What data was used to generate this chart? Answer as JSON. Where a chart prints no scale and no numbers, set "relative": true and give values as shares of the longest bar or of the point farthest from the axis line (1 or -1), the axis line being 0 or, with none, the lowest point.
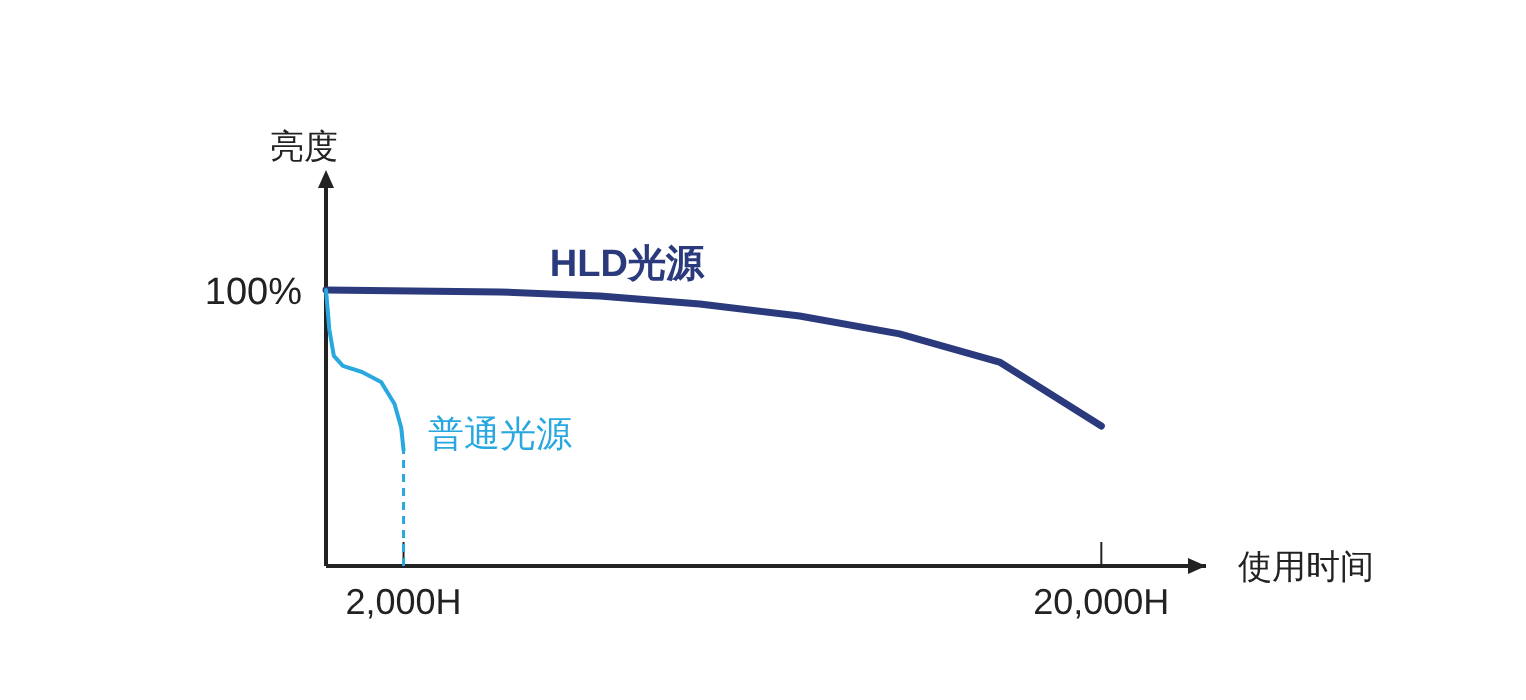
{
  "chart_data": {
    "type": "line",
    "relative": true,
    "ylabel": "亮度",
    "xlabel": "使用时间",
    "xlim": [
      0,
      22700
    ],
    "xticks": [
      {
        "value": 2000,
        "label": "2,000H"
      },
      {
        "value": 20000,
        "label": "20,000H"
      }
    ],
    "annotations": [
      "100%"
    ],
    "series": [
      {
        "name": "HLD光源",
        "color": "#2b3a7c",
        "x": [
          0,
          4485,
          7062,
          9640,
          12217,
          14794,
          17372,
          20000
        ],
        "values": [
          1,
          0.993,
          0.978,
          0.949,
          0.906,
          0.841,
          0.739,
          0.507
        ]
      },
      {
        "name": "普通光源",
        "color": "#29a8e0",
        "x": [
          0,
          87,
          203,
          435,
          928,
          1420,
          1768,
          1942,
          2000
        ],
        "values": [
          1,
          0.855,
          0.761,
          0.725,
          0.703,
          0.667,
          0.587,
          0.5,
          0.42
        ]
      }
    ],
    "ref_lines": [
      {
        "axis": "x",
        "value": 2000,
        "color": "#29a8e0",
        "line_style": "dashed"
      }
    ],
    "grid": false,
    "legend": false,
    "marker": "none",
    "line_style": "solid"
  }
}
